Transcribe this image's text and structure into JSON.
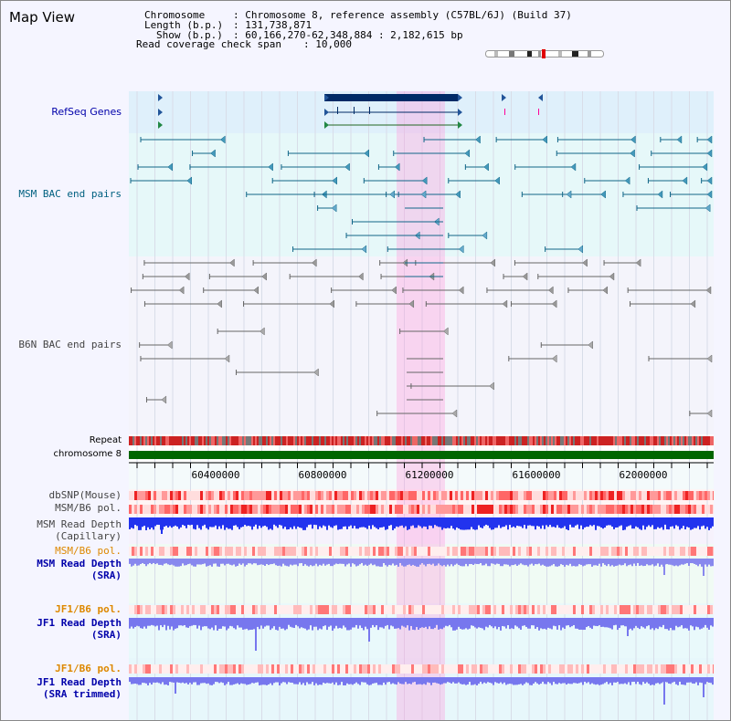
{
  "page": {
    "title": "Map View"
  },
  "info": {
    "chromosome_key": "Chromosome",
    "chromosome_val": ": Chromosome 8, reference assembly (C57BL/6J) (Build 37)",
    "length_key": "Length (b.p.)",
    "length_val": ": 131,738,871",
    "show_key": "Show (b.p.)",
    "show_val": ": 60,166,270-62,348,884 : 2,182,615 bp",
    "coverage_key": "Read coverage check span",
    "coverage_val": ": 10,000"
  },
  "tracks": {
    "refseq": "RefSeq Genes",
    "msm_bac": "MSM BAC end pairs",
    "b6n_bac": "B6N BAC end pairs",
    "repeat": "Repeat",
    "chromosome": "chromosome 8",
    "dbsnp": "dbSNP(Mouse)",
    "msm_b6_pol_1": "MSM/B6 pol.",
    "msm_read_depth_cap_1": "MSM Read Depth",
    "msm_read_depth_cap_2": "(Capillary)",
    "msm_b6_pol_2": "MSM/B6 pol.",
    "msm_read_depth_sra_1": "MSM Read Depth",
    "msm_read_depth_sra_2": "(SRA)",
    "jf1_b6_pol_1": "JF1/B6 pol.",
    "jf1_read_depth_sra_1": "JF1 Read Depth",
    "jf1_read_depth_sra_2": "(SRA)",
    "jf1_b6_pol_2": "JF1/B6 pol.",
    "jf1_read_depth_trim_1": "JF1 Read Depth",
    "jf1_read_depth_trim_2": "(SRA trimmed)"
  },
  "axis": {
    "ticks": [
      "60400000",
      "60800000",
      "61200000",
      "61600000",
      "62000000"
    ]
  },
  "colors": {
    "label_blue": "#0000aa",
    "label_teal": "#006080",
    "label_orange": "#dd8800",
    "chromosome": "#006600",
    "highlight": "#ffccee"
  }
}
